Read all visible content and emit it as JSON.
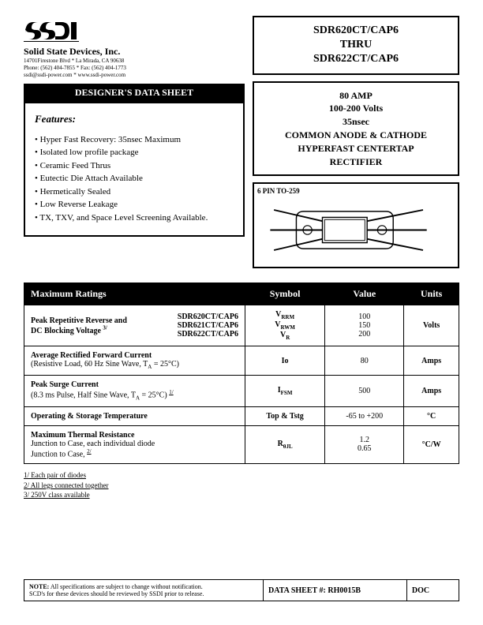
{
  "company": {
    "name": "Solid State Devices, Inc.",
    "addr1": "14701Firestone Blvd  *  La Mirada, CA 90638",
    "addr2": "Phone: (562) 404-7855  *  Fax: (562) 404-1773",
    "addr3": "ssdi@ssdi-power.com  *  www.ssdi-power.com"
  },
  "banner": "DESIGNER'S DATA SHEET",
  "features": {
    "title": "Features:",
    "items": [
      "Hyper Fast Recovery:  35nsec Maximum",
      "Isolated low profile package",
      "Ceramic Feed Thrus",
      "Eutectic Die Attach Available",
      "Hermetically Sealed",
      "Low Reverse Leakage",
      "TX, TXV, and Space Level Screening Available."
    ]
  },
  "partbox": {
    "l1": "SDR620CT/CAP6",
    "l2": "THRU",
    "l3": "SDR622CT/CAP6"
  },
  "descbox": {
    "l1": "80 AMP",
    "l2": "100-200 Volts",
    "l3": "35nsec",
    "l4": "COMMON ANODE & CATHODE",
    "l5": "HYPERFAST CENTERTAP",
    "l6": "RECTIFIER"
  },
  "pkg_label": "6 PIN TO-259",
  "table": {
    "h1": "Maximum Ratings",
    "h2": "Symbol",
    "h3": "Value",
    "h4": "Units",
    "r1": {
      "desc1": "Peak Repetitive Reverse and",
      "desc2": "DC Blocking Voltage ",
      "parts": [
        "SDR620CT/CAP6",
        "SDR621CT/CAP6",
        "SDR622CT/CAP6"
      ],
      "syms": [
        "V",
        "V",
        "V"
      ],
      "subs": [
        "RRM",
        "RWM",
        "R"
      ],
      "vals": [
        "100",
        "150",
        "200"
      ],
      "unit": "Volts"
    },
    "r2": {
      "desc1": "Average Rectified Forward Current",
      "desc2": "(Resistive Load, 60 Hz Sine Wave, T",
      "desc3": " = 25°C)",
      "sym": "Io",
      "val": "80",
      "unit": "Amps"
    },
    "r3": {
      "desc1": "Peak Surge Current",
      "desc2": "(8.3 ms Pulse, Half Sine Wave, T",
      "desc3": " = 25°C) ",
      "sym": "I",
      "sub": "FSM",
      "val": "500",
      "unit": "Amps"
    },
    "r4": {
      "desc": "Operating & Storage Temperature",
      "sym": "Top & Tstg",
      "val": "-65 to +200",
      "unit": "°C"
    },
    "r5": {
      "desc1": "Maximum Thermal Resistance",
      "desc2": "Junction to Case, each individual diode",
      "desc3": "Junction to Case, ",
      "sym": "R",
      "sub": "θJL",
      "v1": "1.2",
      "v2": "0.65",
      "unit": "°C/W"
    }
  },
  "footnotes": {
    "f1": "1/ Each pair of diodes",
    "f2": "2/ All legs connected together",
    "f3": "3/ 250V class available"
  },
  "note": {
    "text1": "NOTE:  All specifications are subject to change without notification.",
    "text2": "SCD's for these devices should be reviewed by SSDI prior to release.",
    "dslabel": "DATA SHEET #: RH0015B",
    "doc": "DOC"
  }
}
